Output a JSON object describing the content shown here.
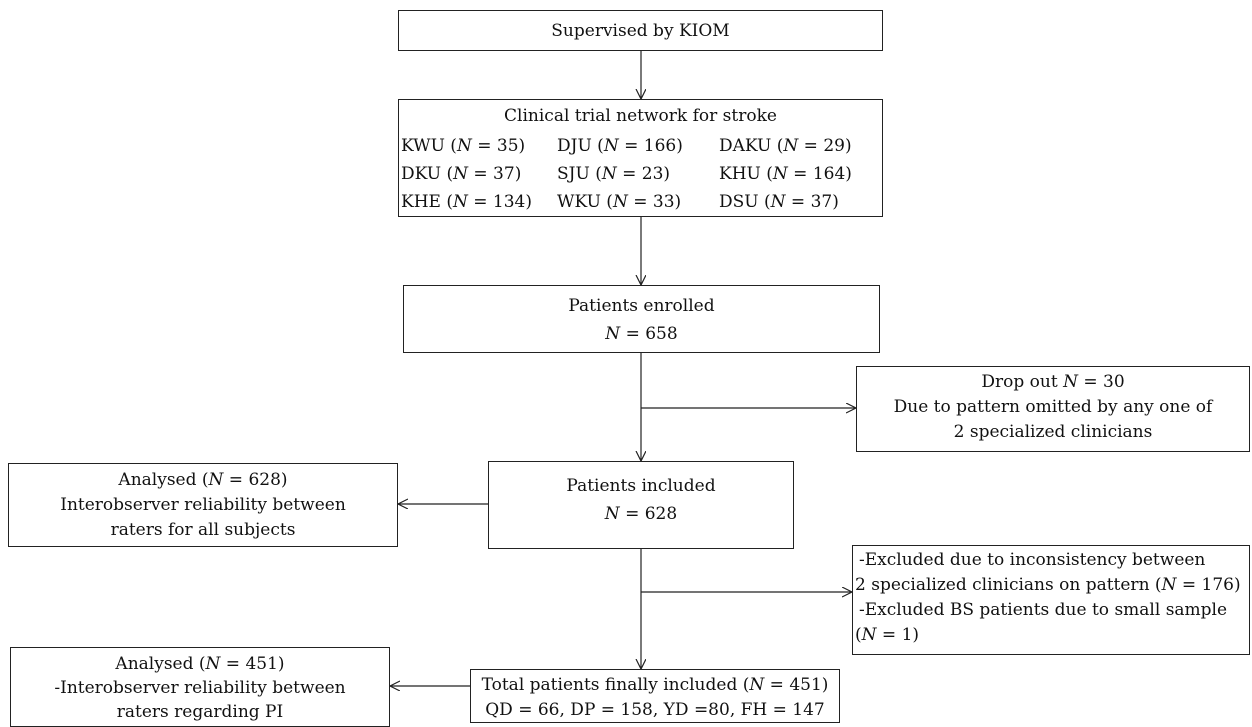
{
  "nodes": {
    "supervised": {
      "text": "Supervised by KIOM"
    },
    "network": {
      "title": "Clinical trial network for stroke",
      "sites": [
        [
          "KWU",
          "35"
        ],
        [
          "DJU",
          "166"
        ],
        [
          "DAKU",
          "29"
        ],
        [
          "DKU",
          "37"
        ],
        [
          "SJU",
          "23"
        ],
        [
          "KHU",
          "164"
        ],
        [
          "KHE",
          "134"
        ],
        [
          "WKU",
          "33"
        ],
        [
          "DSU",
          "37"
        ]
      ]
    },
    "enrolled": {
      "line1": "Patients enrolled",
      "n": "658"
    },
    "dropout": {
      "line1_pre": "Drop out ",
      "n": "30",
      "line2": "Due to pattern omitted by any one of",
      "line3": "2 specialized clinicians"
    },
    "included": {
      "line1": "Patients included",
      "n": "628"
    },
    "analysed_all": {
      "pre": "Analysed (",
      "n": "628",
      "post": ")",
      "line2": "Interobserver reliability between",
      "line3": "raters for all subjects"
    },
    "excluded": {
      "line1": "-Excluded due to inconsistency between",
      "line2_pre": "2 specialized clinicians on pattern (",
      "n1": "176",
      "line2_post": ")",
      "line3": "-Excluded BS patients due to small sample",
      "line4_pre": "(",
      "n2": "1",
      "line4_post": ")"
    },
    "final": {
      "pre": "Total patients finally included (",
      "n": "451",
      "post": ")",
      "line2": "QD = 66, DP = 158, YD =80, FH = 147"
    },
    "analysed_pi": {
      "pre": "Analysed (",
      "n": "451",
      "post": ")",
      "line2": "-Interobserver reliability between",
      "line3": "raters regarding PI"
    }
  },
  "symbols": {
    "N": "N",
    "eq": " = "
  }
}
